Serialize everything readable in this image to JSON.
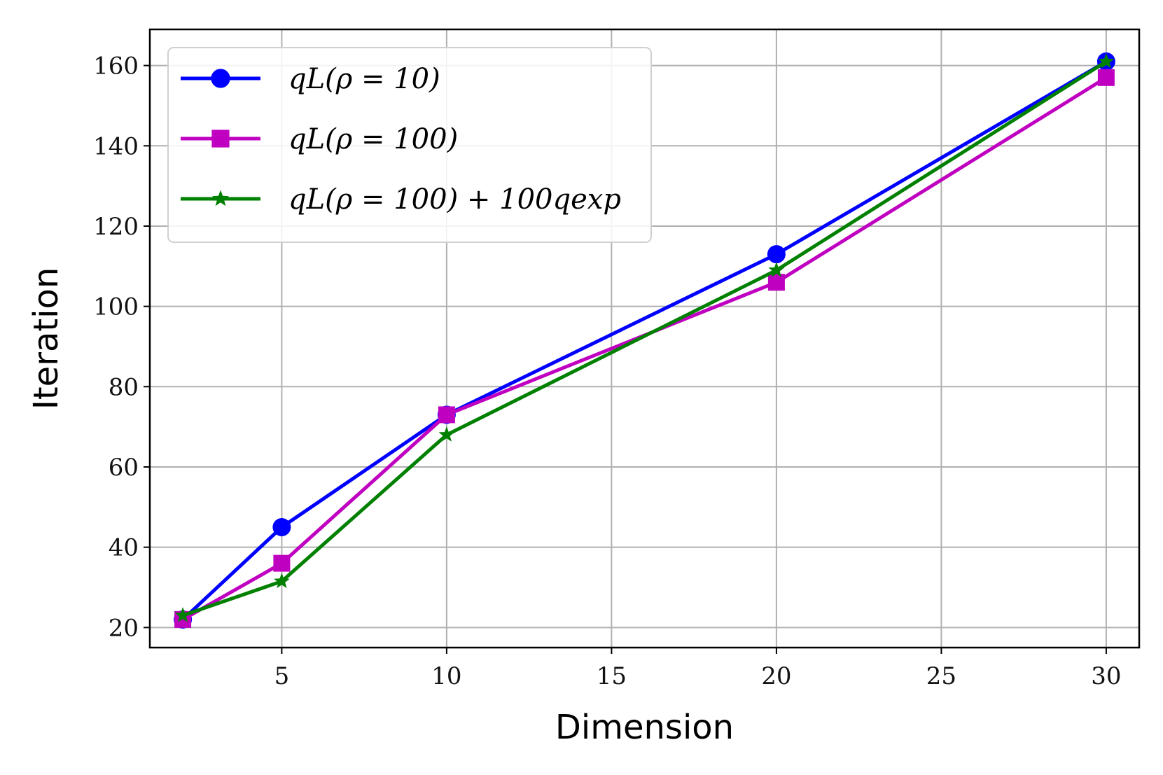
{
  "chart_data": {
    "type": "line",
    "xlabel": "Dimension",
    "ylabel": "Iteration",
    "xlim": [
      1,
      31
    ],
    "ylim": [
      15,
      169
    ],
    "xticks": [
      5,
      10,
      15,
      20,
      25,
      30
    ],
    "yticks": [
      20,
      40,
      60,
      80,
      100,
      120,
      140,
      160
    ],
    "grid": true,
    "legend_position": "top-left",
    "x": [
      2,
      5,
      10,
      20,
      30
    ],
    "series": [
      {
        "name": "qL(ρ = 10)",
        "color": "#0000ff",
        "marker": "circle",
        "values": [
          22,
          45,
          73,
          113,
          161
        ]
      },
      {
        "name": "qL(ρ = 100)",
        "color": "#c000c0",
        "marker": "square",
        "values": [
          22,
          36,
          73,
          106,
          157
        ]
      },
      {
        "name": "qL(ρ = 100) + 100qexp",
        "color": "#008000",
        "marker": "star",
        "values": [
          23,
          31.5,
          68,
          109,
          161
        ]
      }
    ]
  }
}
